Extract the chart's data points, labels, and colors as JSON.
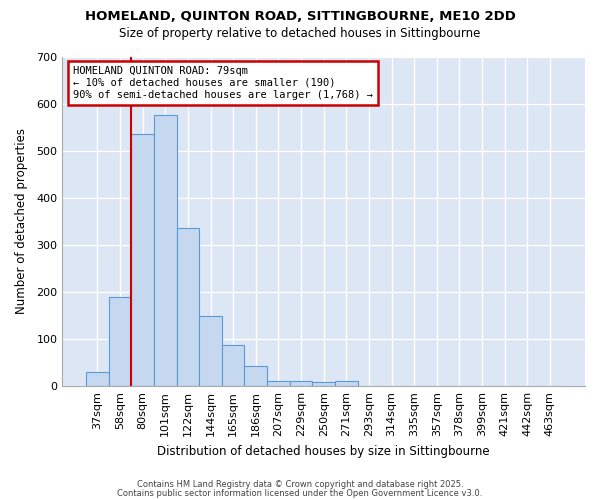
{
  "title": "HOMELAND, QUINTON ROAD, SITTINGBOURNE, ME10 2DD",
  "subtitle": "Size of property relative to detached houses in Sittingbourne",
  "xlabel": "Distribution of detached houses by size in Sittingbourne",
  "ylabel": "Number of detached properties",
  "categories": [
    "37sqm",
    "58sqm",
    "80sqm",
    "101sqm",
    "122sqm",
    "144sqm",
    "165sqm",
    "186sqm",
    "207sqm",
    "229sqm",
    "250sqm",
    "271sqm",
    "293sqm",
    "314sqm",
    "335sqm",
    "357sqm",
    "378sqm",
    "399sqm",
    "421sqm",
    "442sqm",
    "463sqm"
  ],
  "values": [
    30,
    190,
    535,
    575,
    335,
    148,
    87,
    42,
    12,
    10,
    8,
    10,
    0,
    0,
    0,
    0,
    0,
    0,
    0,
    0,
    0
  ],
  "bar_color": "#c5d8f0",
  "bar_edge_color": "#5b9bd5",
  "figure_bg": "#ffffff",
  "axes_bg": "#dce6f5",
  "grid_color": "#ffffff",
  "ylim": [
    0,
    700
  ],
  "yticks": [
    0,
    100,
    200,
    300,
    400,
    500,
    600,
    700
  ],
  "red_line_index": 2,
  "annotation_title": "HOMELAND QUINTON ROAD: 79sqm",
  "annotation_line1": "← 10% of detached houses are smaller (190)",
  "annotation_line2": "90% of semi-detached houses are larger (1,768) →",
  "annotation_box_color": "#ffffff",
  "annotation_border_color": "#cc0000",
  "red_line_color": "#cc0000",
  "footer1": "Contains HM Land Registry data © Crown copyright and database right 2025.",
  "footer2": "Contains public sector information licensed under the Open Government Licence v3.0."
}
